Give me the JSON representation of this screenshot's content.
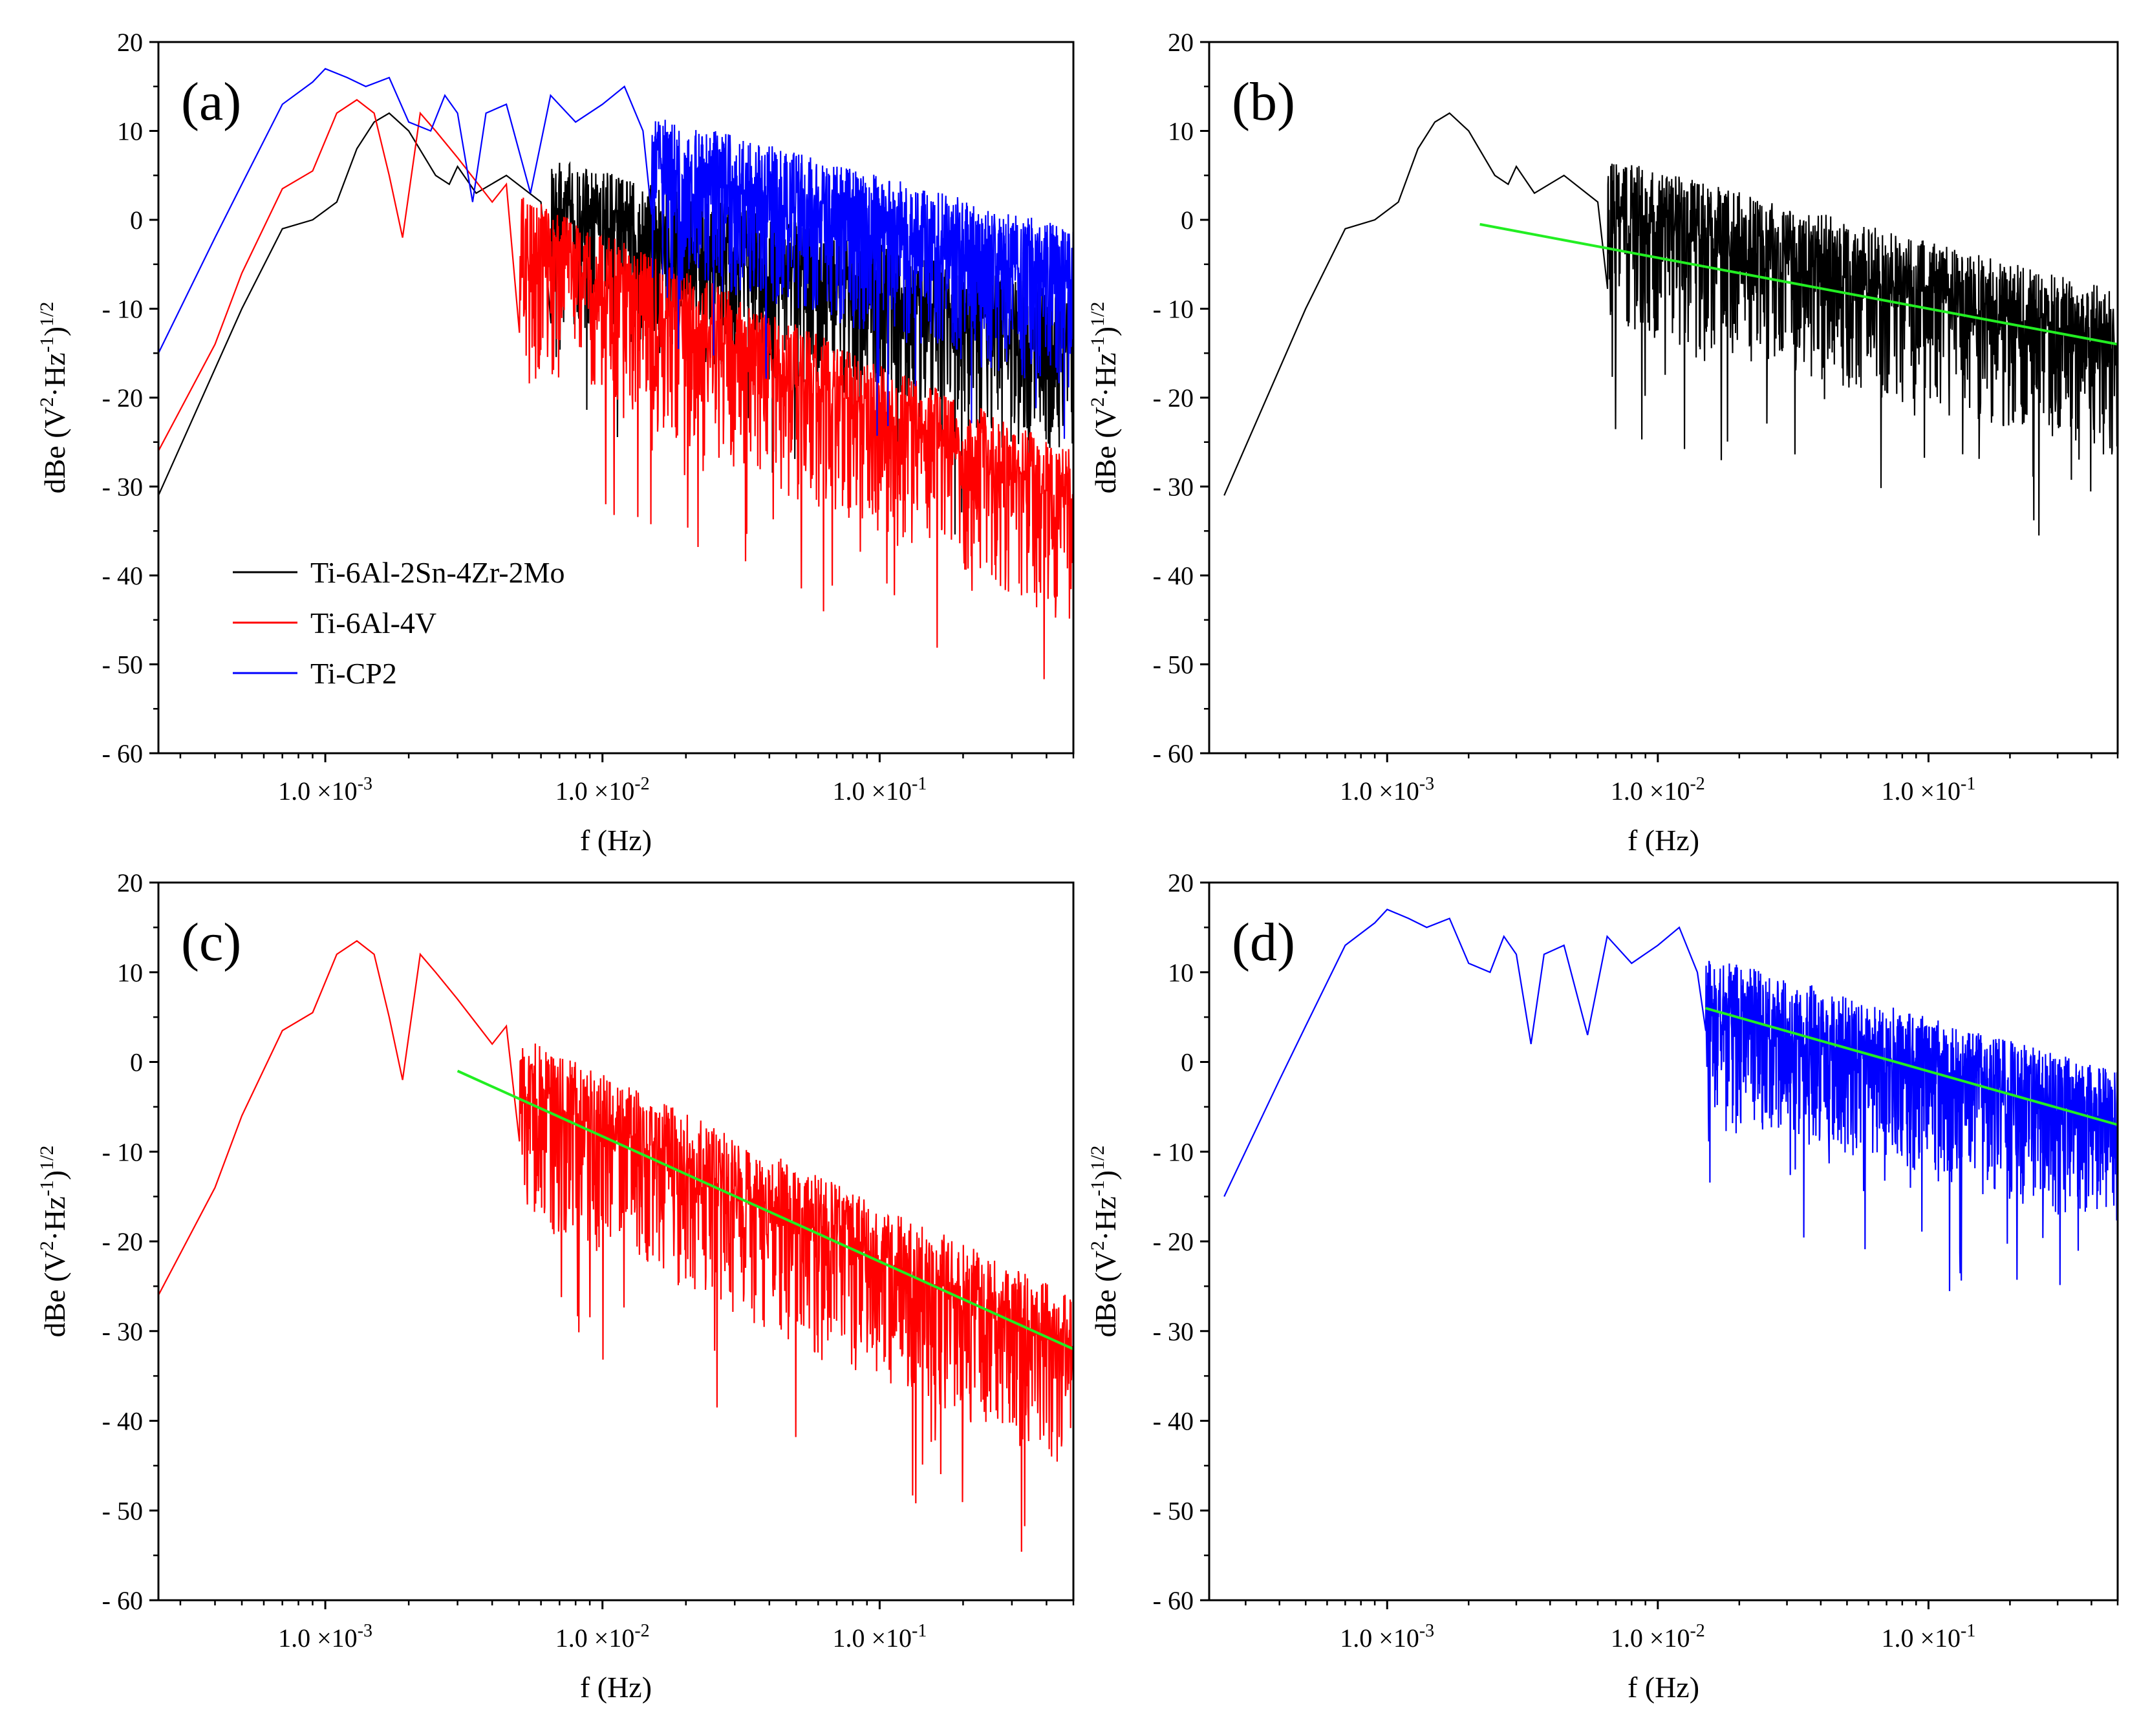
{
  "figure": {
    "description_free": true
  },
  "chart_data": [
    {
      "id": "a",
      "type": "line",
      "panel_label": "(a)",
      "xlabel": "f (Hz)",
      "ylabel_main": "dBe (V",
      "ylabel_sup1": "2",
      "ylabel_mid": "·Hz",
      "ylabel_sup2": "-1",
      "ylabel_end": ")",
      "ylabel_sup3": "1/2",
      "xscale": "log",
      "xlim": [
        0.00025,
        0.5
      ],
      "ylim": [
        -60,
        20
      ],
      "yticks": [
        20,
        10,
        0,
        -10,
        -20,
        -30,
        -40,
        -50,
        -60
      ],
      "ytick_labels": [
        "20",
        "10",
        "0",
        "- 10",
        "- 20",
        "- 30",
        "- 40",
        "- 50",
        "- 60"
      ],
      "xticks": [
        0.001,
        0.01,
        0.1
      ],
      "xtick_labels": [
        "1.0 ×10",
        "1.0 ×10",
        "1.0 ×10"
      ],
      "xtick_exponents": [
        "-3",
        "-2",
        "-1"
      ],
      "legend_position": "lower-left",
      "series": [
        {
          "name": "Ti-6Al-2Sn-4Zr-2Mo",
          "color": "#000000",
          "coarse": [
            [
              0.00025,
              -31
            ],
            [
              0.0005,
              -10
            ],
            [
              0.0007,
              -1
            ],
            [
              0.0009,
              0
            ],
            [
              0.0011,
              2
            ],
            [
              0.0013,
              8
            ],
            [
              0.0015,
              11
            ],
            [
              0.0017,
              12
            ],
            [
              0.002,
              10
            ],
            [
              0.0025,
              5
            ],
            [
              0.0028,
              4
            ],
            [
              0.003,
              6
            ],
            [
              0.0035,
              3
            ],
            [
              0.0045,
              5
            ],
            [
              0.006,
              2
            ]
          ],
          "trend_start": [
            0.0065,
            1
          ],
          "trend_end": [
            0.5,
            -14
          ],
          "noise_low": 13,
          "noise_high": 6
        },
        {
          "name": "Ti-6Al-4V",
          "color": "#ff0000",
          "coarse": [
            [
              0.00025,
              -26
            ],
            [
              0.0004,
              -14
            ],
            [
              0.0005,
              -6
            ],
            [
              0.0007,
              3.5
            ],
            [
              0.0009,
              5.5
            ],
            [
              0.0011,
              12
            ],
            [
              0.0013,
              13.5
            ],
            [
              0.0015,
              12
            ],
            [
              0.0017,
              5
            ],
            [
              0.0019,
              -2
            ],
            [
              0.0022,
              12
            ],
            [
              0.0025,
              10
            ],
            [
              0.003,
              7
            ],
            [
              0.004,
              2
            ],
            [
              0.0045,
              4
            ]
          ],
          "trend_start": [
            0.005,
            -3
          ],
          "trend_end": [
            0.5,
            -32
          ],
          "noise_low": 14,
          "noise_high": 6
        },
        {
          "name": "Ti-CP2",
          "color": "#0000ff",
          "coarse": [
            [
              0.00025,
              -15
            ],
            [
              0.0004,
              -2
            ],
            [
              0.0005,
              4
            ],
            [
              0.0007,
              13
            ],
            [
              0.0009,
              15.5
            ],
            [
              0.001,
              17
            ],
            [
              0.0012,
              16
            ],
            [
              0.0014,
              15
            ],
            [
              0.0017,
              16
            ],
            [
              0.002,
              11
            ],
            [
              0.0024,
              10
            ],
            [
              0.0027,
              14
            ],
            [
              0.003,
              12
            ],
            [
              0.0034,
              2
            ],
            [
              0.0038,
              12
            ],
            [
              0.0045,
              13
            ],
            [
              0.0055,
              3
            ],
            [
              0.0065,
              14
            ],
            [
              0.008,
              11
            ],
            [
              0.01,
              13
            ],
            [
              0.012,
              15
            ],
            [
              0.014,
              10
            ]
          ],
          "trend_start": [
            0.015,
            6
          ],
          "trend_end": [
            0.5,
            -7
          ],
          "noise_low": 12,
          "noise_high": 6
        }
      ]
    },
    {
      "id": "b",
      "type": "line",
      "panel_label": "(b)",
      "xlabel": "f (Hz)",
      "ylabel_main": "dBe (V",
      "ylabel_sup1": "2",
      "ylabel_mid": "·Hz",
      "ylabel_sup2": "-1",
      "ylabel_end": ")",
      "ylabel_sup3": "1/2",
      "xscale": "log",
      "xlim": [
        0.00022,
        0.5
      ],
      "ylim": [
        -60,
        20
      ],
      "yticks": [
        20,
        10,
        0,
        -10,
        -20,
        -30,
        -40,
        -50,
        -60
      ],
      "ytick_labels": [
        "20",
        "10",
        "0",
        "- 10",
        "- 20",
        "- 30",
        "- 40",
        "- 50",
        "- 60"
      ],
      "xticks": [
        0.001,
        0.01,
        0.1
      ],
      "xtick_labels": [
        "1.0 ×10",
        "1.0 ×10",
        "1.0 ×10"
      ],
      "xtick_exponents": [
        "-3",
        "-2",
        "-1"
      ],
      "series": [
        {
          "name": "Ti-6Al-2Sn-4Zr-2Mo",
          "color": "#000000",
          "coarse": [
            [
              0.00025,
              -31
            ],
            [
              0.0005,
              -10
            ],
            [
              0.0007,
              -1
            ],
            [
              0.0009,
              0
            ],
            [
              0.0011,
              2
            ],
            [
              0.0013,
              8
            ],
            [
              0.0015,
              11
            ],
            [
              0.0017,
              12
            ],
            [
              0.002,
              10
            ],
            [
              0.0025,
              5
            ],
            [
              0.0028,
              4
            ],
            [
              0.003,
              6
            ],
            [
              0.0035,
              3
            ],
            [
              0.0045,
              5
            ],
            [
              0.006,
              2
            ]
          ],
          "trend_start": [
            0.0065,
            1
          ],
          "trend_end": [
            0.5,
            -14
          ],
          "noise_low": 13,
          "noise_high": 6
        }
      ],
      "fit_line": {
        "color": "#22ee22",
        "start": [
          0.0022,
          -0.5
        ],
        "end": [
          0.5,
          -14
        ]
      }
    },
    {
      "id": "c",
      "type": "line",
      "panel_label": "(c)",
      "xlabel": "f (Hz)",
      "ylabel_main": "dBe (V",
      "ylabel_sup1": "2",
      "ylabel_mid": "·Hz",
      "ylabel_sup2": "-1",
      "ylabel_end": ")",
      "ylabel_sup3": "1/2",
      "xscale": "log",
      "xlim": [
        0.00025,
        0.5
      ],
      "ylim": [
        -60,
        20
      ],
      "yticks": [
        20,
        10,
        0,
        -10,
        -20,
        -30,
        -40,
        -50,
        -60
      ],
      "ytick_labels": [
        "20",
        "10",
        "0",
        "- 10",
        "- 20",
        "- 30",
        "- 40",
        "- 50",
        "- 60"
      ],
      "xticks": [
        0.001,
        0.01,
        0.1
      ],
      "xtick_labels": [
        "1.0 ×10",
        "1.0 ×10",
        "1.0 ×10"
      ],
      "xtick_exponents": [
        "-3",
        "-2",
        "-1"
      ],
      "series": [
        {
          "name": "Ti-6Al-4V",
          "color": "#ff0000",
          "coarse": [
            [
              0.00025,
              -26
            ],
            [
              0.0004,
              -14
            ],
            [
              0.0005,
              -6
            ],
            [
              0.0007,
              3.5
            ],
            [
              0.0009,
              5.5
            ],
            [
              0.0011,
              12
            ],
            [
              0.0013,
              13.5
            ],
            [
              0.0015,
              12
            ],
            [
              0.0017,
              5
            ],
            [
              0.0019,
              -2
            ],
            [
              0.0022,
              12
            ],
            [
              0.0025,
              10
            ],
            [
              0.003,
              7
            ],
            [
              0.004,
              2
            ],
            [
              0.0045,
              4
            ]
          ],
          "trend_start": [
            0.005,
            -3
          ],
          "trend_end": [
            0.5,
            -32
          ],
          "noise_low": 14,
          "noise_high": 6
        }
      ],
      "fit_line": {
        "color": "#22ee22",
        "start": [
          0.003,
          -1
        ],
        "end": [
          0.5,
          -32
        ]
      }
    },
    {
      "id": "d",
      "type": "line",
      "panel_label": "(d)",
      "xlabel": "f (Hz)",
      "ylabel_main": "dBe (V",
      "ylabel_sup1": "2",
      "ylabel_mid": "·Hz",
      "ylabel_sup2": "-1",
      "ylabel_end": ")",
      "ylabel_sup3": "1/2",
      "xscale": "log",
      "xlim": [
        0.00022,
        0.5
      ],
      "ylim": [
        -60,
        20
      ],
      "yticks": [
        20,
        10,
        0,
        -10,
        -20,
        -30,
        -40,
        -50,
        -60
      ],
      "ytick_labels": [
        "20",
        "10",
        "0",
        "- 10",
        "- 20",
        "- 30",
        "- 40",
        "- 50",
        "- 60"
      ],
      "xticks": [
        0.001,
        0.01,
        0.1
      ],
      "xtick_labels": [
        "1.0 ×10",
        "1.0 ×10",
        "1.0 ×10"
      ],
      "xtick_exponents": [
        "-3",
        "-2",
        "-1"
      ],
      "series": [
        {
          "name": "Ti-CP2",
          "color": "#0000ff",
          "coarse": [
            [
              0.00025,
              -15
            ],
            [
              0.0004,
              -2
            ],
            [
              0.0005,
              4
            ],
            [
              0.0007,
              13
            ],
            [
              0.0009,
              15.5
            ],
            [
              0.001,
              17
            ],
            [
              0.0012,
              16
            ],
            [
              0.0014,
              15
            ],
            [
              0.0017,
              16
            ],
            [
              0.002,
              11
            ],
            [
              0.0024,
              10
            ],
            [
              0.0027,
              14
            ],
            [
              0.003,
              12
            ],
            [
              0.0034,
              2
            ],
            [
              0.0038,
              12
            ],
            [
              0.0045,
              13
            ],
            [
              0.0055,
              3
            ],
            [
              0.0065,
              14
            ],
            [
              0.008,
              11
            ],
            [
              0.01,
              13
            ],
            [
              0.012,
              15
            ],
            [
              0.014,
              10
            ]
          ],
          "trend_start": [
            0.015,
            6
          ],
          "trend_end": [
            0.5,
            -7
          ],
          "noise_low": 12,
          "noise_high": 6
        }
      ],
      "fit_line": {
        "color": "#22ee22",
        "start": [
          0.015,
          6
        ],
        "end": [
          0.5,
          -7
        ]
      }
    }
  ]
}
